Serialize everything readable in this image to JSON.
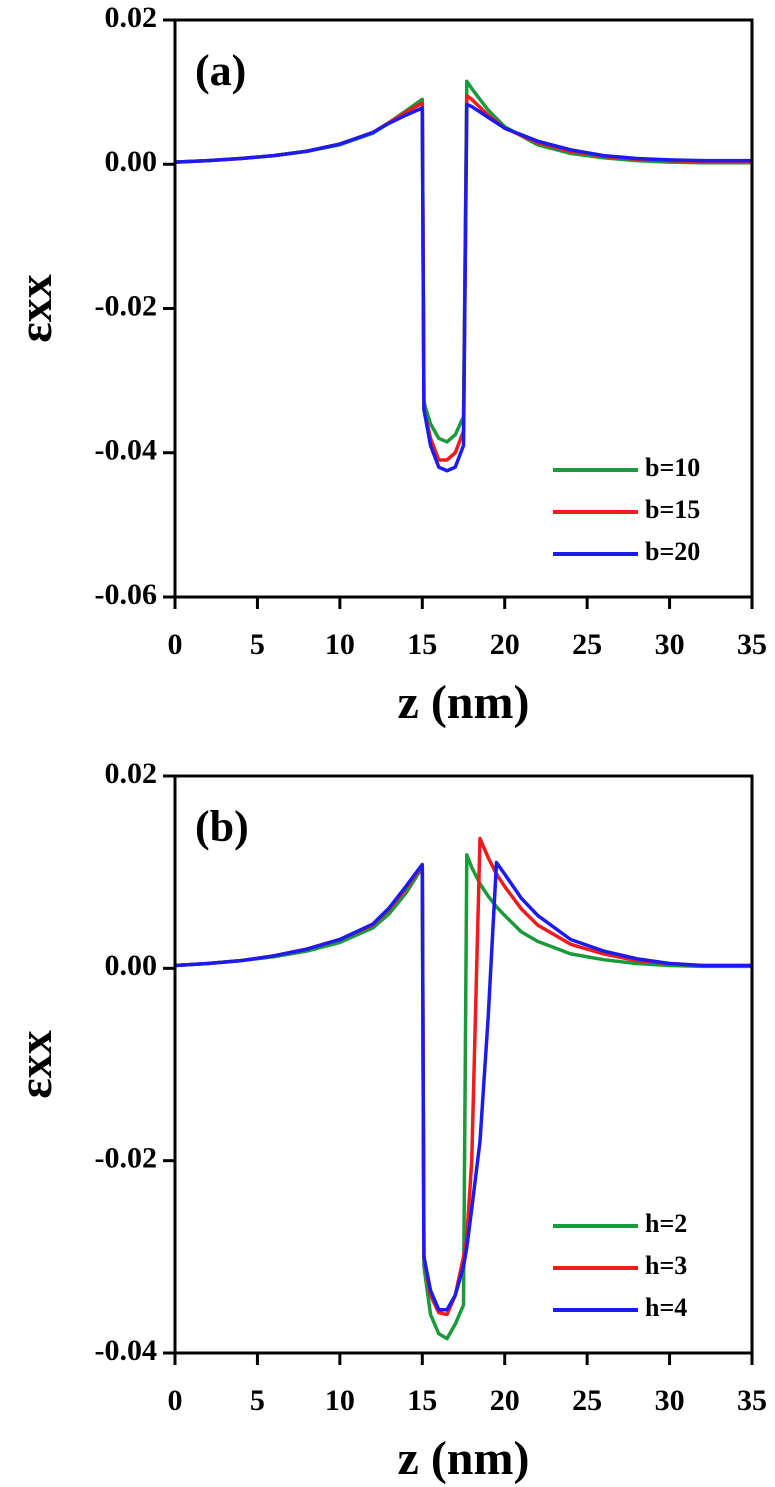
{
  "chart_data": [
    {
      "type": "line",
      "annotation": "(a)",
      "xlabel": "z (nm)",
      "ylabel": "εxx",
      "x": [
        0,
        2,
        4,
        6,
        8,
        10,
        12,
        13,
        14,
        15,
        15.1,
        15.5,
        16,
        16.5,
        17,
        17.5,
        17.7,
        18,
        19,
        20,
        22,
        24,
        26,
        28,
        30,
        32,
        35
      ],
      "series": [
        {
          "name": "b=10",
          "color": "#1a9a3a",
          "values": [
            0.0003,
            0.0005,
            0.0008,
            0.0012,
            0.0018,
            0.0027,
            0.0043,
            0.0058,
            0.0074,
            0.009,
            -0.033,
            -0.036,
            -0.038,
            -0.0385,
            -0.0375,
            -0.035,
            0.0115,
            0.0105,
            0.0075,
            0.0052,
            0.0027,
            0.0015,
            0.0009,
            0.0005,
            0.0003,
            0.0002,
            0.0002
          ]
        },
        {
          "name": "b=15",
          "color": "#ee1c1c",
          "values": [
            0.0003,
            0.0005,
            0.0008,
            0.0012,
            0.0018,
            0.0028,
            0.0044,
            0.0058,
            0.0072,
            0.0085,
            -0.034,
            -0.038,
            -0.041,
            -0.041,
            -0.04,
            -0.037,
            0.0095,
            0.009,
            0.0068,
            0.005,
            0.003,
            0.0018,
            0.0011,
            0.0007,
            0.0005,
            0.0004,
            0.0004
          ]
        },
        {
          "name": "b=20",
          "color": "#1c1cee",
          "values": [
            0.0003,
            0.0005,
            0.0008,
            0.0012,
            0.0018,
            0.0028,
            0.0044,
            0.0057,
            0.0068,
            0.0078,
            -0.034,
            -0.039,
            -0.042,
            -0.0425,
            -0.042,
            -0.039,
            0.0083,
            0.008,
            0.0065,
            0.005,
            0.0032,
            0.002,
            0.0012,
            0.0008,
            0.0006,
            0.0005,
            0.0005
          ]
        }
      ],
      "xlim": [
        0,
        35
      ],
      "xticks": [
        0,
        5,
        10,
        15,
        20,
        25,
        30,
        35
      ],
      "ylim": [
        -0.06,
        0.02
      ],
      "yticks": [
        {
          "value": -0.06,
          "label": "-0.06"
        },
        {
          "value": -0.04,
          "label": "-0.04"
        },
        {
          "value": -0.02,
          "label": "-0.02"
        },
        {
          "value": 0,
          "label": "0.00"
        },
        {
          "value": 0.02,
          "label": "0.02"
        }
      ],
      "legend": "lower right"
    },
    {
      "type": "line",
      "annotation": "(b)",
      "xlabel": "z (nm)",
      "ylabel": "εxx",
      "x": [
        0,
        2,
        4,
        6,
        8,
        10,
        12,
        13,
        14,
        15,
        15.1,
        15.5,
        16,
        16.5,
        17,
        17.5,
        17.7,
        18,
        18.5,
        19,
        19.5,
        20,
        21,
        22,
        24,
        26,
        28,
        30,
        32,
        35
      ],
      "series": [
        {
          "name": "h=2",
          "color": "#1a9a3a",
          "values": [
            0.0003,
            0.0005,
            0.0008,
            0.0012,
            0.0018,
            0.0027,
            0.0042,
            0.0057,
            0.0078,
            0.0105,
            -0.031,
            -0.036,
            -0.038,
            -0.0385,
            -0.037,
            -0.035,
            0.0118,
            0.0105,
            0.0088,
            0.0075,
            0.0064,
            0.0055,
            0.0038,
            0.0028,
            0.0015,
            0.0009,
            0.0005,
            0.0003,
            0.0002,
            0.0002
          ]
        },
        {
          "name": "h=3",
          "color": "#ee1c1c",
          "values": [
            0.0003,
            0.0005,
            0.0008,
            0.0013,
            0.002,
            0.003,
            0.0045,
            0.0062,
            0.0083,
            0.0107,
            -0.03,
            -0.034,
            -0.0358,
            -0.036,
            -0.034,
            -0.03,
            -0.028,
            -0.02,
            0.0135,
            0.0115,
            0.0098,
            0.0085,
            0.0062,
            0.0045,
            0.0025,
            0.0015,
            0.0008,
            0.0005,
            0.0003,
            0.0003
          ]
        },
        {
          "name": "h=4",
          "color": "#1c1cee",
          "values": [
            0.0003,
            0.0005,
            0.0008,
            0.0013,
            0.002,
            0.003,
            0.0046,
            0.0063,
            0.0085,
            0.0108,
            -0.03,
            -0.0335,
            -0.0355,
            -0.0355,
            -0.034,
            -0.031,
            -0.029,
            -0.025,
            -0.018,
            -0.005,
            0.011,
            0.0098,
            0.0073,
            0.0055,
            0.003,
            0.0018,
            0.001,
            0.0005,
            0.0003,
            0.0003
          ]
        }
      ],
      "xlim": [
        0,
        35
      ],
      "xticks": [
        0,
        5,
        10,
        15,
        20,
        25,
        30,
        35
      ],
      "ylim": [
        -0.04,
        0.02
      ],
      "yticks": [
        {
          "value": -0.04,
          "label": "-0.04"
        },
        {
          "value": -0.02,
          "label": "-0.02"
        },
        {
          "value": 0,
          "label": "0.00"
        },
        {
          "value": 0.02,
          "label": "0.02"
        }
      ],
      "legend": "lower right"
    }
  ]
}
